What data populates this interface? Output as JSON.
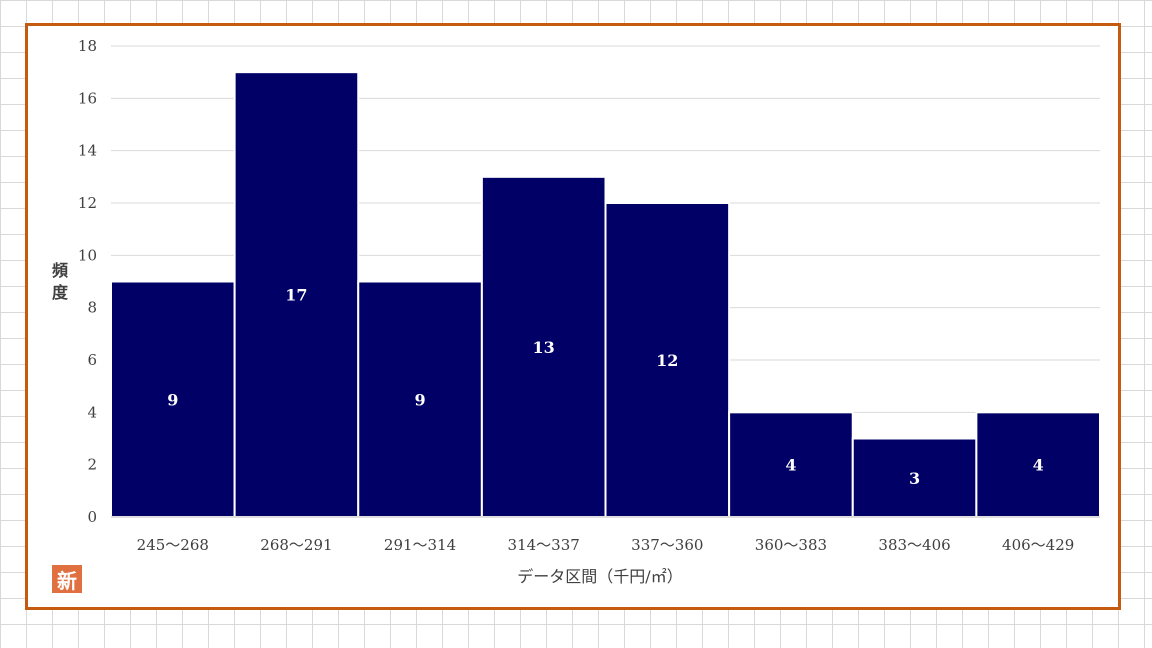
{
  "chart_data": {
    "type": "bar",
    "categories": [
      "245～268",
      "268～291",
      "291～314",
      "314～337",
      "337～360",
      "360～383",
      "383～406",
      "406～429"
    ],
    "values": [
      9,
      17,
      9,
      13,
      12,
      4,
      3,
      4
    ],
    "xlabel": "データ区間（千円/㎡）",
    "ylabel": "頻度",
    "ylim": [
      0,
      18
    ],
    "yticks": [
      0,
      2,
      4,
      6,
      8,
      10,
      12,
      14,
      16,
      18
    ],
    "grid": true,
    "bar_color": "#000066",
    "label_color": "#ffffff"
  },
  "badge": {
    "text": "新"
  },
  "colors": {
    "frame": "#c55a11",
    "grid": "#d9d9d9",
    "badge": "#e07040"
  }
}
